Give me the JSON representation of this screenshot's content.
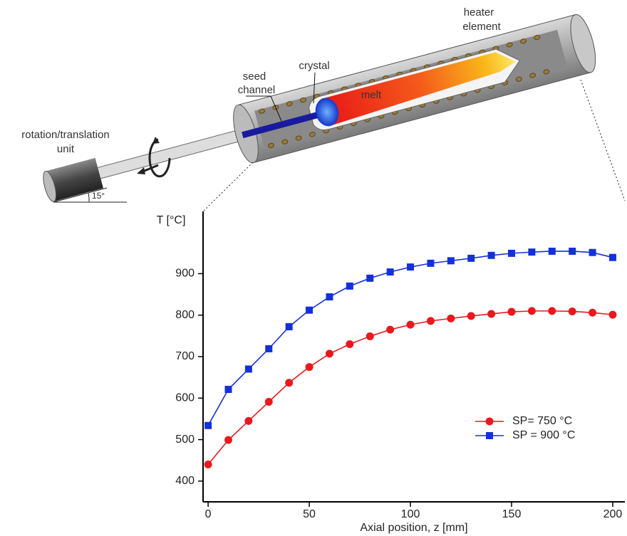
{
  "diagram": {
    "labels": {
      "heater": [
        "heater",
        "element"
      ],
      "seed": [
        "seed",
        "channel"
      ],
      "crystal": "crystal",
      "melt": "melt",
      "unit": [
        "rotation/translation",
        "unit"
      ],
      "angle": "15°"
    }
  },
  "chart_data": {
    "type": "line",
    "y_label": "T [°C]",
    "x_label": "Axial position, z [mm]",
    "x": [
      0,
      10,
      20,
      30,
      40,
      50,
      60,
      70,
      80,
      90,
      100,
      110,
      120,
      130,
      140,
      150,
      160,
      170,
      180,
      190,
      200
    ],
    "series": [
      {
        "name": "SP= 750 °C",
        "color": "#e8191e",
        "marker": "circle",
        "values": [
          440,
          499,
          545,
          591,
          637,
          675,
          707,
          730,
          749,
          765,
          777,
          786,
          792,
          798,
          803,
          808,
          810,
          810,
          809,
          806,
          801
        ]
      },
      {
        "name": "SP = 900 °C",
        "color": "#1430d8",
        "marker": "square",
        "values": [
          534,
          621,
          670,
          719,
          772,
          812,
          844,
          870,
          889,
          904,
          916,
          925,
          931,
          937,
          944,
          949,
          952,
          954,
          954,
          951,
          939
        ]
      }
    ],
    "xlim": [
      -2.5,
      206
    ],
    "ylim": [
      350,
      1050
    ],
    "xticks": [
      0,
      50,
      100,
      150,
      200
    ],
    "yticks": [
      400,
      500,
      600,
      700,
      800,
      900
    ],
    "legend": "lower right"
  }
}
